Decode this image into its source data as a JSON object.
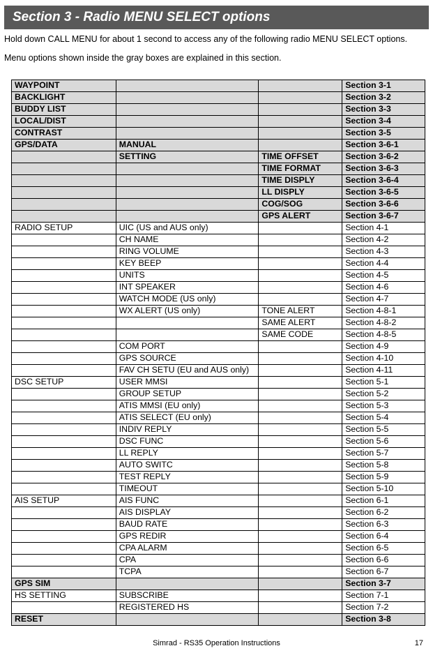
{
  "header": "Section 3 - Radio MENU SELECT options",
  "intro1": "Hold down CALL MENU for about 1 second to access any of the following radio MENU SELECT options.",
  "intro2": "Menu options shown inside the gray boxes are explained in this section.",
  "footer_center": "Simrad - RS35 Operation Instructions",
  "footer_page": "17",
  "rows": [
    {
      "shade": "gray",
      "c1": "WAYPOINT",
      "c2": "",
      "c3": "",
      "c4": "Section 3-1"
    },
    {
      "shade": "gray",
      "c1": "BACKLIGHT",
      "c2": "",
      "c3": "",
      "c4": "Section 3-2"
    },
    {
      "shade": "gray",
      "c1": "BUDDY LIST",
      "c2": "",
      "c3": "",
      "c4": "Section 3-3"
    },
    {
      "shade": "gray",
      "c1": "LOCAL/DIST",
      "c2": "",
      "c3": "",
      "c4": "Section 3-4"
    },
    {
      "shade": "gray",
      "c1": "CONTRAST",
      "c2": "",
      "c3": "",
      "c4": "Section 3-5"
    },
    {
      "shade": "gray",
      "c1": "GPS/DATA",
      "c2": "MANUAL",
      "c3": "",
      "c4": "Section 3-6-1"
    },
    {
      "shade": "gray",
      "c1": "",
      "c2": "SETTING",
      "c3": "TIME OFFSET",
      "c4": "Section 3-6-2"
    },
    {
      "shade": "gray",
      "c1": "",
      "c2": "",
      "c3": "TIME FORMAT",
      "c4": "Section 3-6-3"
    },
    {
      "shade": "gray",
      "c1": "",
      "c2": "",
      "c3": "TIME DISPLY",
      "c4": "Section 3-6-4"
    },
    {
      "shade": "gray",
      "c1": "",
      "c2": "",
      "c3": "LL DISPLY",
      "c4": "Section 3-6-5"
    },
    {
      "shade": "gray",
      "c1": "",
      "c2": "",
      "c3": "COG/SOG",
      "c4": "Section 3-6-6"
    },
    {
      "shade": "gray",
      "c1": "",
      "c2": "",
      "c3": "GPS ALERT",
      "c4": "Section 3-6-7"
    },
    {
      "shade": "white",
      "c1": "RADIO SETUP",
      "c2": "UIC  (US and AUS only)",
      "c3": "",
      "c4": "Section 4-1"
    },
    {
      "shade": "white",
      "c1": "",
      "c2": "CH NAME",
      "c3": "",
      "c4": "Section 4-2"
    },
    {
      "shade": "white",
      "c1": "",
      "c2": "RING VOLUME",
      "c3": "",
      "c4": "Section 4-3"
    },
    {
      "shade": "white",
      "c1": "",
      "c2": "KEY BEEP",
      "c3": "",
      "c4": "Section 4-4"
    },
    {
      "shade": "white",
      "c1": "",
      "c2": "UNITS",
      "c3": "",
      "c4": "Section 4-5"
    },
    {
      "shade": "white",
      "c1": "",
      "c2": "INT SPEAKER",
      "c3": "",
      "c4": "Section 4-6"
    },
    {
      "shade": "white",
      "c1": "",
      "c2": "WATCH MODE  (US only)",
      "c3": "",
      "c4": "Section 4-7"
    },
    {
      "shade": "white",
      "c1": "",
      "c2": "WX ALERT  (US only)",
      "c3": "TONE ALERT",
      "c4": "Section 4-8-1"
    },
    {
      "shade": "white",
      "c1": "",
      "c2": "",
      "c3": "SAME ALERT",
      "c4": "Section 4-8-2"
    },
    {
      "shade": "white",
      "c1": "",
      "c2": "",
      "c3": "SAME CODE",
      "c4": "Section 4-8-5"
    },
    {
      "shade": "white",
      "c1": "",
      "c2": "COM PORT",
      "c3": "",
      "c4": "Section 4-9"
    },
    {
      "shade": "white",
      "c1": "",
      "c2": "GPS SOURCE",
      "c3": "",
      "c4": "Section 4-10"
    },
    {
      "shade": "white",
      "c1": "",
      "c2": "FAV CH SETU (EU and AUS only)",
      "c3": "",
      "c4": "Section 4-11"
    },
    {
      "shade": "white",
      "c1": "DSC SETUP",
      "c2": "USER MMSI",
      "c3": "",
      "c4": "Section 5-1"
    },
    {
      "shade": "white",
      "c1": "",
      "c2": "GROUP SETUP",
      "c3": "",
      "c4": "Section 5-2"
    },
    {
      "shade": "white",
      "c1": "",
      "c2": "ATIS MMSI   (EU only)",
      "c3": "",
      "c4": "Section 5-3"
    },
    {
      "shade": "white",
      "c1": "",
      "c2": "ATIS SELECT   (EU only)",
      "c3": "",
      "c4": "Section 5-4"
    },
    {
      "shade": "white",
      "c1": "",
      "c2": "INDIV REPLY",
      "c3": "",
      "c4": "Section 5-5"
    },
    {
      "shade": "white",
      "c1": "",
      "c2": "DSC FUNC",
      "c3": "",
      "c4": "Section 5-6"
    },
    {
      "shade": "white",
      "c1": "",
      "c2": "LL REPLY",
      "c3": "",
      "c4": "Section 5-7"
    },
    {
      "shade": "white",
      "c1": "",
      "c2": "AUTO SWITC",
      "c3": "",
      "c4": "Section 5-8"
    },
    {
      "shade": "white",
      "c1": "",
      "c2": "TEST REPLY",
      "c3": "",
      "c4": "Section 5-9"
    },
    {
      "shade": "white",
      "c1": "",
      "c2": "TIMEOUT",
      "c3": "",
      "c4": "Section 5-10"
    },
    {
      "shade": "white",
      "c1": "AIS SETUP",
      "c2": "AIS FUNC",
      "c3": "",
      "c4": "Section 6-1"
    },
    {
      "shade": "white",
      "c1": "",
      "c2": "AIS DISPLAY",
      "c3": "",
      "c4": "Section 6-2"
    },
    {
      "shade": "white",
      "c1": "",
      "c2": "BAUD RATE",
      "c3": "",
      "c4": "Section 6-3"
    },
    {
      "shade": "white",
      "c1": "",
      "c2": "GPS REDIR",
      "c3": "",
      "c4": "Section 6-4"
    },
    {
      "shade": "white",
      "c1": "",
      "c2": "CPA ALARM",
      "c3": "",
      "c4": "Section 6-5"
    },
    {
      "shade": "white",
      "c1": "",
      "c2": "CPA",
      "c3": "",
      "c4": "Section 6-6"
    },
    {
      "shade": "white",
      "c1": "",
      "c2": "TCPA",
      "c3": "",
      "c4": "Section 6-7"
    },
    {
      "shade": "gray",
      "c1": "GPS SIM",
      "c2": "",
      "c3": "",
      "c4": "Section 3-7"
    },
    {
      "shade": "white",
      "c1": "HS SETTING",
      "c2": "SUBSCRIBE",
      "c3": "",
      "c4": "Section 7-1"
    },
    {
      "shade": "white",
      "c1": "",
      "c2": "REGISTERED HS",
      "c3": "",
      "c4": "Section 7-2"
    },
    {
      "shade": "gray",
      "c1": "RESET",
      "c2": "",
      "c3": "",
      "c4": "Section 3-8"
    }
  ]
}
